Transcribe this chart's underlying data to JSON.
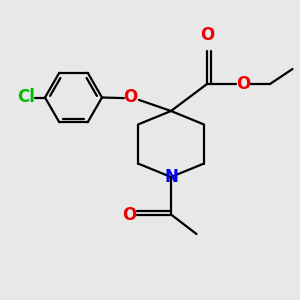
{
  "bg_color": "#e8e8e8",
  "line_color": "#000000",
  "N_color": "#0000ee",
  "O_color": "#ee0000",
  "Cl_color": "#00bb00",
  "bond_lw": 1.6,
  "font_size": 11,
  "fig_size": [
    3.0,
    3.0
  ],
  "dpi": 100,
  "xlim": [
    0,
    10
  ],
  "ylim": [
    0,
    10
  ]
}
